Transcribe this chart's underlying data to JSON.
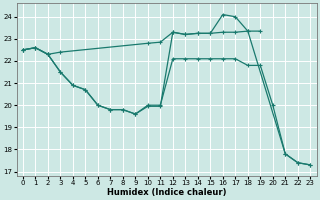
{
  "xlabel": "Humidex (Indice chaleur)",
  "bg_color": "#cde8e4",
  "grid_color": "#ffffff",
  "line_color": "#1a7a6e",
  "xlim": [
    -0.5,
    23.5
  ],
  "ylim": [
    16.8,
    24.6
  ],
  "yticks": [
    17,
    18,
    19,
    20,
    21,
    22,
    23,
    24
  ],
  "xticks": [
    0,
    1,
    2,
    3,
    4,
    5,
    6,
    7,
    8,
    9,
    10,
    11,
    12,
    13,
    14,
    15,
    16,
    17,
    18,
    19,
    20,
    21,
    22,
    23
  ],
  "line1_x": [
    0,
    1,
    2,
    3,
    10,
    11,
    12,
    13,
    14,
    15,
    16,
    17,
    18,
    19
  ],
  "line1_y": [
    22.5,
    22.6,
    22.3,
    22.4,
    22.8,
    22.85,
    23.3,
    23.2,
    23.25,
    23.25,
    23.3,
    23.3,
    23.35,
    23.35
  ],
  "line2_x": [
    0,
    1,
    2,
    3,
    4,
    5,
    6,
    7,
    8,
    9,
    10,
    11,
    12,
    13,
    14,
    15,
    16,
    17,
    18,
    19,
    20,
    21,
    22,
    23
  ],
  "line2_y": [
    22.5,
    22.6,
    22.3,
    21.5,
    20.9,
    20.7,
    20.0,
    19.8,
    19.8,
    19.6,
    20.0,
    20.0,
    22.1,
    22.1,
    22.1,
    22.1,
    22.1,
    22.1,
    21.8,
    21.8,
    20.0,
    17.8,
    17.4,
    17.3
  ],
  "line3_x": [
    0,
    1,
    2,
    3,
    4,
    5,
    6,
    7,
    8,
    9,
    10,
    11,
    12,
    13,
    14,
    15,
    16,
    17,
    18,
    21,
    22,
    23
  ],
  "line3_y": [
    22.5,
    22.6,
    22.3,
    21.5,
    20.9,
    20.7,
    20.0,
    19.8,
    19.8,
    19.6,
    19.95,
    19.95,
    23.3,
    23.2,
    23.25,
    23.25,
    24.1,
    24.0,
    23.35,
    17.8,
    17.4,
    17.3
  ]
}
